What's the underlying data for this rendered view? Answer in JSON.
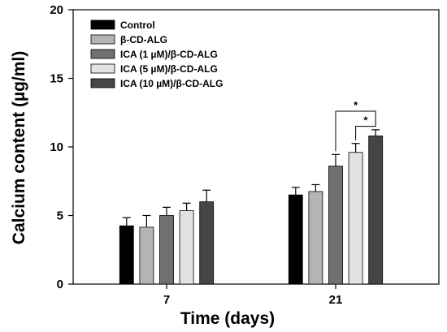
{
  "chart_data": {
    "type": "bar",
    "categories": [
      "7",
      "21"
    ],
    "xlabel": "Time (days)",
    "ylabel": "Calcium content (µg/ml)",
    "ylim": [
      0,
      20
    ],
    "yticks": [
      "0",
      "5",
      "10",
      "15",
      "20"
    ],
    "grid": false,
    "legend_position": "top-left",
    "series": [
      {
        "name": "Control",
        "color": "#000000",
        "values": [
          4.25,
          6.5
        ],
        "errors": [
          0.6,
          0.55
        ]
      },
      {
        "name": "β-CD-ALG",
        "color": "#b4b4b4",
        "values": [
          4.15,
          6.75
        ],
        "errors": [
          0.85,
          0.5
        ]
      },
      {
        "name": "ICA (1 µM)/β-CD-ALG",
        "color": "#707070",
        "values": [
          5.0,
          8.6
        ],
        "errors": [
          0.6,
          0.85
        ]
      },
      {
        "name": "ICA (5 µM)/β-CD-ALG",
        "color": "#e2e2e2",
        "values": [
          5.35,
          9.6
        ],
        "errors": [
          0.55,
          0.65
        ]
      },
      {
        "name": "ICA (10 µM)/β-CD-ALG",
        "color": "#454545",
        "values": [
          6.0,
          10.8
        ],
        "errors": [
          0.85,
          0.45
        ]
      }
    ],
    "annotations": [
      {
        "label": "*",
        "category": "21",
        "from_series": 2,
        "to_series": 4
      },
      {
        "label": "*",
        "category": "21",
        "from_series": 3,
        "to_series": 4
      }
    ]
  }
}
